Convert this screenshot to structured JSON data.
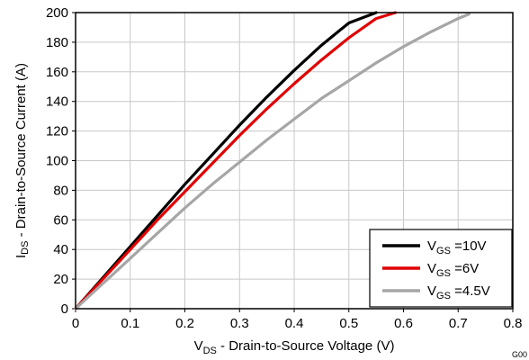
{
  "chart_data": {
    "type": "line",
    "xlabel": {
      "main": "V",
      "sub": "DS",
      "rest": " - Drain-to-Source Voltage (V)"
    },
    "ylabel": {
      "main": "I",
      "sub": "DS",
      "rest": " - Drain-to-Source Current (A)"
    },
    "xlim": [
      0,
      0.8
    ],
    "ylim": [
      0,
      200
    ],
    "xticks": [
      "0",
      "0.1",
      "0.2",
      "0.3",
      "0.4",
      "0.5",
      "0.6",
      "0.7",
      "0.8"
    ],
    "yticks": [
      "0",
      "20",
      "40",
      "60",
      "80",
      "100",
      "120",
      "140",
      "160",
      "180",
      "200"
    ],
    "grid": true,
    "legend_position": "bottom-right",
    "figure_code": "G00",
    "series": [
      {
        "name": {
          "main": "V",
          "sub": "GS",
          "rest": " =10V"
        },
        "color": "#000000",
        "points": [
          [
            0,
            0
          ],
          [
            0.05,
            21
          ],
          [
            0.1,
            42
          ],
          [
            0.15,
            63
          ],
          [
            0.2,
            84
          ],
          [
            0.25,
            104
          ],
          [
            0.3,
            124
          ],
          [
            0.35,
            143
          ],
          [
            0.4,
            161
          ],
          [
            0.45,
            178
          ],
          [
            0.5,
            193
          ],
          [
            0.55,
            200
          ]
        ]
      },
      {
        "name": {
          "main": "V",
          "sub": "GS",
          "rest": " =6V"
        },
        "color": "#e00000",
        "points": [
          [
            0,
            0
          ],
          [
            0.05,
            20
          ],
          [
            0.1,
            40
          ],
          [
            0.15,
            60
          ],
          [
            0.2,
            79
          ],
          [
            0.25,
            98
          ],
          [
            0.3,
            117
          ],
          [
            0.35,
            135
          ],
          [
            0.4,
            152
          ],
          [
            0.45,
            168
          ],
          [
            0.5,
            183
          ],
          [
            0.55,
            196
          ],
          [
            0.585,
            200
          ]
        ]
      },
      {
        "name": {
          "main": "V",
          "sub": "GS",
          "rest": " =4.5V"
        },
        "color": "#a6a6a6",
        "points": [
          [
            0,
            0
          ],
          [
            0.05,
            17
          ],
          [
            0.1,
            34
          ],
          [
            0.15,
            51
          ],
          [
            0.2,
            68
          ],
          [
            0.25,
            84
          ],
          [
            0.3,
            99
          ],
          [
            0.35,
            114
          ],
          [
            0.4,
            128
          ],
          [
            0.45,
            142
          ],
          [
            0.5,
            154
          ],
          [
            0.55,
            166
          ],
          [
            0.6,
            177
          ],
          [
            0.65,
            187
          ],
          [
            0.7,
            196
          ],
          [
            0.72,
            199
          ]
        ]
      }
    ]
  }
}
